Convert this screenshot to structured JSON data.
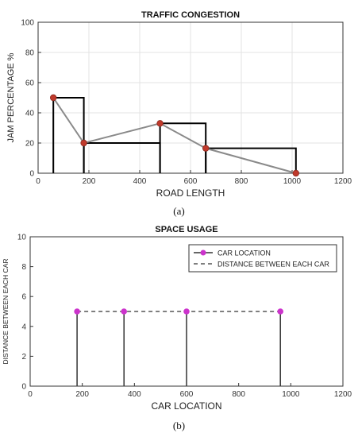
{
  "chart_data": [
    {
      "type": "line",
      "title": "TRAFFIC CONGESTION",
      "xlabel": "ROAD LENGTH",
      "ylabel": "JAM PERCENTAGE %",
      "xlim": [
        0,
        1200
      ],
      "ylim": [
        0,
        100
      ],
      "xticks": [
        0,
        200,
        400,
        600,
        800,
        1000,
        1200
      ],
      "yticks": [
        0,
        20,
        40,
        60,
        80,
        100
      ],
      "grid": true,
      "series": [
        {
          "role": "jam-trend",
          "x": [
            60,
            180,
            480,
            660,
            1015
          ],
          "y": [
            50,
            20,
            33,
            16.5,
            0
          ]
        }
      ],
      "bars": [
        {
          "x0": 60,
          "x1": 180,
          "value": 50
        },
        {
          "x0": 180,
          "x1": 480,
          "value": 20
        },
        {
          "x0": 480,
          "x1": 660,
          "value": 33
        },
        {
          "x0": 660,
          "x1": 1015,
          "value": 16.5
        }
      ],
      "colors": {
        "line": "#8a8a8a",
        "marker": "#c0392b",
        "bars": "#000000"
      },
      "caption": "(a)"
    },
    {
      "type": "scatter",
      "title": "SPACE USAGE",
      "xlabel": "CAR LOCATION",
      "ylabel": "DISTANCE BETWEEN EACH CAR",
      "xlim": [
        0,
        1200
      ],
      "ylim": [
        0,
        10
      ],
      "xticks": [
        0,
        200,
        400,
        600,
        800,
        1000,
        1200
      ],
      "yticks": [
        0,
        2,
        4,
        6,
        8,
        10
      ],
      "grid": false,
      "legend_position": "top-right",
      "series": [
        {
          "name": "CAR LOCATION",
          "x": [
            180,
            360,
            600,
            960
          ],
          "y": [
            5,
            5,
            5,
            5
          ]
        },
        {
          "name": "DISTANCE BETWEEN EACH CAR",
          "x": [
            180,
            960
          ],
          "y": [
            5,
            5
          ]
        }
      ],
      "colors": {
        "marker": "#cc33cc",
        "stem": "#333333",
        "dashed": "#555555"
      },
      "caption": "(b)"
    }
  ]
}
